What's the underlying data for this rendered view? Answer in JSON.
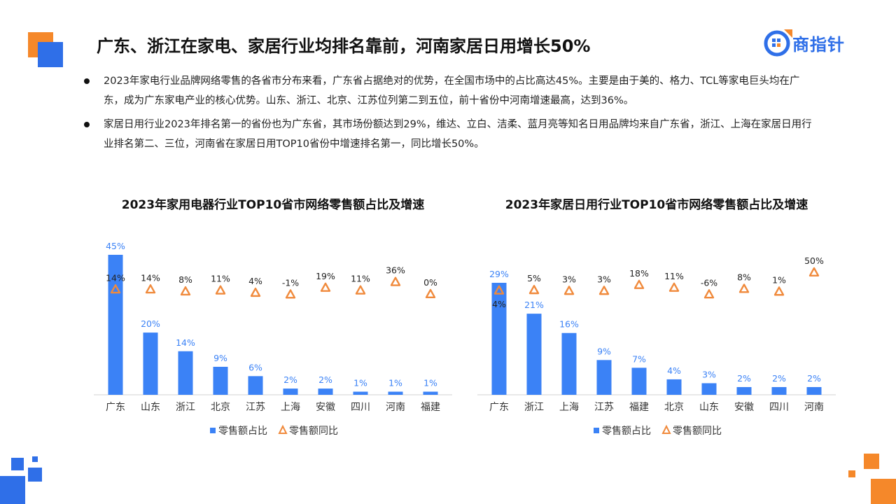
{
  "header": {
    "title": "广东、浙江在家电、家居行业均排名靠前，河南家居日用增长50%",
    "logo_text": "商指针"
  },
  "bullets": [
    "2023年家电行业品牌网络零售的各省市分布来看，广东省占据绝对的优势，在全国市场中的占比高达45%。主要是由于美的、格力、TCL等家电巨头均在广东，成为广东家电产业的核心优势。山东、浙江、北京、江苏位列第二到五位，前十省份中河南增速最高，达到36%。",
    "家居日用行业2023年排名第一的省份也为广东省，其市场份额达到29%，维达、立白、洁柔、蓝月亮等知名日用品牌均来自广东省，浙江、上海在家居日用行业排名第二、三位，河南省在家居日用TOP10省份中增速排名第一，同比增长50%。"
  ],
  "colors": {
    "bar": "#3b82f6",
    "marker": "#f08a3c",
    "bar_label": "#3b82f6",
    "deco_orange": "#f5882a",
    "deco_blue": "#2f6fe8"
  },
  "chart_data": [
    {
      "type": "bar",
      "title": "2023年家用电器行业TOP10省市网络零售额占比及增速",
      "categories": [
        "广东",
        "山东",
        "浙江",
        "北京",
        "江苏",
        "上海",
        "安徽",
        "四川",
        "河南",
        "福建"
      ],
      "series": [
        {
          "name": "零售额占比",
          "type": "bar",
          "values": [
            45,
            20,
            14,
            9,
            6,
            2,
            2,
            1,
            1,
            1
          ],
          "labels": [
            "45%",
            "20%",
            "14%",
            "9%",
            "6%",
            "2%",
            "2%",
            "1%",
            "1%",
            "1%"
          ]
        },
        {
          "name": "零售额同比",
          "type": "scatter",
          "marker": "triangle",
          "values": [
            14,
            14,
            8,
            11,
            4,
            -1,
            19,
            11,
            36,
            0
          ],
          "labels": [
            "14%",
            "14%",
            "8%",
            "11%",
            "4%",
            "-1%",
            "19%",
            "11%",
            "36%",
            "0%"
          ]
        }
      ],
      "legend": "bottom",
      "grid": false
    },
    {
      "type": "bar",
      "title": "2023年家居日用行业TOP10省市网络零售额占比及增速",
      "categories": [
        "广东",
        "浙江",
        "上海",
        "江苏",
        "福建",
        "北京",
        "山东",
        "安徽",
        "四川",
        "河南"
      ],
      "series": [
        {
          "name": "零售额占比",
          "type": "bar",
          "values": [
            29,
            21,
            16,
            9,
            7,
            4,
            3,
            2,
            2,
            2
          ],
          "labels": [
            "29%",
            "21%",
            "16%",
            "9%",
            "7%",
            "4%",
            "3%",
            "2%",
            "2%",
            "2%"
          ]
        },
        {
          "name": "零售额同比",
          "type": "scatter",
          "marker": "triangle",
          "values": [
            4,
            5,
            3,
            3,
            18,
            11,
            -6,
            8,
            1,
            50
          ],
          "labels": [
            "4%",
            "5%",
            "3%",
            "3%",
            "18%",
            "11%",
            "-6%",
            "8%",
            "1%",
            "50%"
          ]
        }
      ],
      "legend": "bottom",
      "grid": false
    }
  ]
}
